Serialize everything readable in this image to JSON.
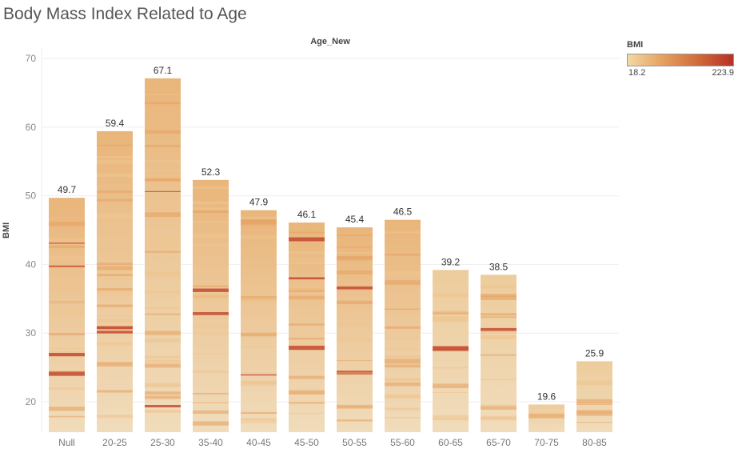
{
  "title": "Body Mass Index Related to Age",
  "column_header": "Age_New",
  "legend": {
    "title": "BMI",
    "min_label": "18.2",
    "max_label": "223.9"
  },
  "colors": {
    "light": "#f0dcb7",
    "mid": "#ebb678",
    "dark": "#c0412b",
    "grid": "#eeeeee",
    "axis_text": "#666666"
  },
  "chart_data": {
    "type": "bar",
    "xlabel": "",
    "ylabel": "BMI",
    "ylim": [
      15,
      70
    ],
    "yticks": [
      20,
      30,
      40,
      50,
      60,
      70
    ],
    "categories": [
      "Null",
      "20-25",
      "25-30",
      "35-40",
      "40-45",
      "45-50",
      "50-55",
      "55-60",
      "60-65",
      "65-70",
      "70-75",
      "80-85"
    ],
    "values": [
      49.7,
      59.4,
      67.1,
      52.3,
      47.9,
      46.1,
      45.4,
      46.5,
      39.2,
      38.5,
      19.6,
      25.9
    ],
    "value_labels": [
      "49.7",
      "59.4",
      "67.1",
      "52.3",
      "47.9",
      "46.1",
      "45.4",
      "46.5",
      "39.2",
      "38.5",
      "19.6",
      "25.9"
    ],
    "grid": true,
    "legend_position": "top-right",
    "color_scale": {
      "field": "BMI",
      "min": 18.2,
      "max": 223.9
    }
  }
}
